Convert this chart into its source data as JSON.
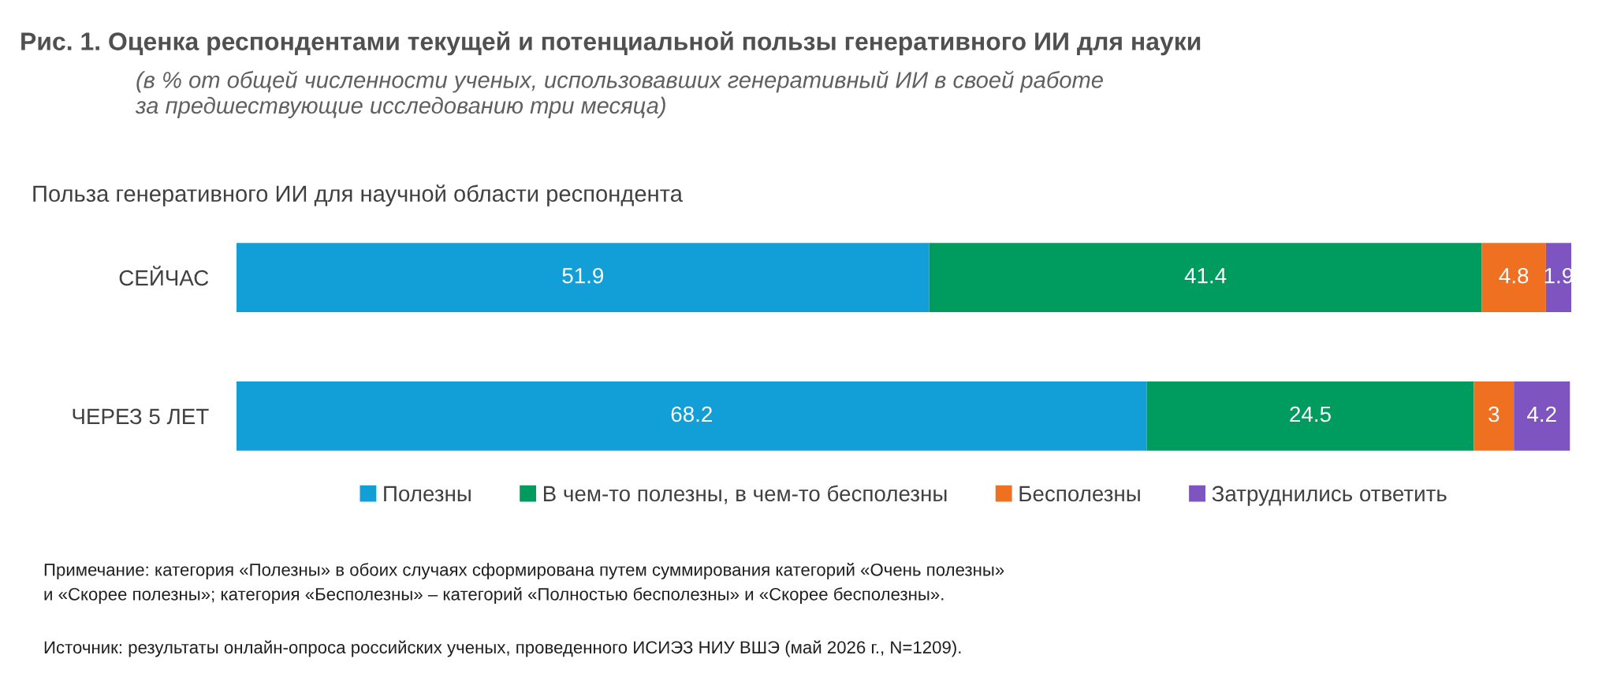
{
  "chart_data": {
    "type": "bar",
    "orientation": "horizontal",
    "stacked": true,
    "data_labels": true,
    "grid": false,
    "legend": "bottom",
    "title": "Рис. 1. Оценка респондентами текущей и потенциальной пользы генеративного ИИ для науки",
    "subtitle": "(в % от общей численности ученых, использовавших генеративный ИИ в своей работе\nза предшествующие исследованию три месяца)",
    "categories": [
      "СЕЙЧАС",
      "ЧЕРЕЗ 5 ЛЕТ"
    ],
    "series": [
      {
        "name": "Полезны",
        "color": "#129fd8",
        "values": [
          51.9,
          68.2
        ]
      },
      {
        "name": "В чем-то полезны, в чем-то бесполезны",
        "color": "#009b5f",
        "values": [
          41.4,
          24.5
        ]
      },
      {
        "name": "Бесполезны",
        "color": "#f07022",
        "values": [
          4.8,
          3
        ]
      },
      {
        "name": "Затруднились ответить",
        "color": "#7e55c0",
        "values": [
          1.9,
          4.2
        ]
      }
    ],
    "annotations": [
      "Польза генеративного ИИ для научной области респондента",
      "Примечание: категория «Полезны» в обоих случаях сформирована путем суммирования категорий «Очень полезны»\nи «Скорее полезны»; категория «Бесполезны» – категорий «Полностью бесполезны» и «Скорее бесполезны».",
      "Источник: результаты онлайн-опроса российских ученых, проведенного ИСИЭЗ НИУ ВШЭ (май 2026 г., N=1209)."
    ]
  }
}
